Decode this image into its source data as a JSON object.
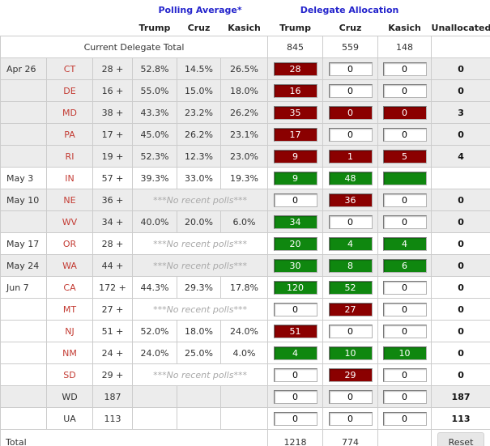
{
  "title_groups": {
    "polling": "Polling Average*",
    "allocation": "Delegate Allocation"
  },
  "columns": {
    "trump": "Trump",
    "cruz": "Cruz",
    "kasich": "Kasich",
    "unallocated": "Unallocated"
  },
  "current_total_row": {
    "label": "Current Delegate Total",
    "trump": "845",
    "cruz": "559",
    "kasich": "148",
    "unallocated": ""
  },
  "no_polls_text": "***No recent polls***",
  "rows": [
    {
      "date": "Apr 26",
      "state": "CT",
      "state_style": "red",
      "delegates": "28 +",
      "polls": [
        "52.8%",
        "14.5%",
        "26.5%"
      ],
      "alloc": [
        {
          "v": "28",
          "s": "red"
        },
        {
          "v": "0",
          "s": "white"
        },
        {
          "v": "0",
          "s": "white"
        }
      ],
      "unallocated": "0",
      "shaded": true
    },
    {
      "date": "",
      "state": "DE",
      "state_style": "red",
      "delegates": "16 +",
      "polls": [
        "55.0%",
        "15.0%",
        "18.0%"
      ],
      "alloc": [
        {
          "v": "16",
          "s": "red"
        },
        {
          "v": "0",
          "s": "white"
        },
        {
          "v": "0",
          "s": "white"
        }
      ],
      "unallocated": "0",
      "shaded": true
    },
    {
      "date": "",
      "state": "MD",
      "state_style": "red",
      "delegates": "38 +",
      "polls": [
        "43.3%",
        "23.2%",
        "26.2%"
      ],
      "alloc": [
        {
          "v": "35",
          "s": "red"
        },
        {
          "v": "0",
          "s": "red"
        },
        {
          "v": "0",
          "s": "red"
        }
      ],
      "unallocated": "3",
      "shaded": true
    },
    {
      "date": "",
      "state": "PA",
      "state_style": "red",
      "delegates": "17 +",
      "polls": [
        "45.0%",
        "26.2%",
        "23.1%"
      ],
      "alloc": [
        {
          "v": "17",
          "s": "red"
        },
        {
          "v": "0",
          "s": "white"
        },
        {
          "v": "0",
          "s": "white"
        }
      ],
      "unallocated": "0",
      "shaded": true
    },
    {
      "date": "",
      "state": "RI",
      "state_style": "red",
      "delegates": "19 +",
      "polls": [
        "52.3%",
        "12.3%",
        "23.0%"
      ],
      "alloc": [
        {
          "v": "9",
          "s": "red"
        },
        {
          "v": "1",
          "s": "red"
        },
        {
          "v": "5",
          "s": "red"
        }
      ],
      "unallocated": "4",
      "shaded": true
    },
    {
      "date": "May 3",
      "state": "IN",
      "state_style": "red",
      "delegates": "57 +",
      "polls": [
        "39.3%",
        "33.0%",
        "19.3%"
      ],
      "alloc": [
        {
          "v": "9",
          "s": "green"
        },
        {
          "v": "48",
          "s": "green"
        },
        {
          "v": "",
          "s": "green"
        }
      ],
      "unallocated": "",
      "shaded": false
    },
    {
      "date": "May 10",
      "state": "NE",
      "state_style": "red",
      "delegates": "36 +",
      "polls": "none",
      "alloc": [
        {
          "v": "0",
          "s": "white"
        },
        {
          "v": "36",
          "s": "red"
        },
        {
          "v": "0",
          "s": "white"
        }
      ],
      "unallocated": "0",
      "shaded": true
    },
    {
      "date": "",
      "state": "WV",
      "state_style": "red",
      "delegates": "34 +",
      "polls": [
        "40.0%",
        "20.0%",
        "6.0%"
      ],
      "alloc": [
        {
          "v": "34",
          "s": "green"
        },
        {
          "v": "0",
          "s": "white"
        },
        {
          "v": "0",
          "s": "white"
        }
      ],
      "unallocated": "0",
      "shaded": true
    },
    {
      "date": "May 17",
      "state": "OR",
      "state_style": "red",
      "delegates": "28 +",
      "polls": "none",
      "alloc": [
        {
          "v": "20",
          "s": "green"
        },
        {
          "v": "4",
          "s": "green"
        },
        {
          "v": "4",
          "s": "green"
        }
      ],
      "unallocated": "0",
      "shaded": false
    },
    {
      "date": "May 24",
      "state": "WA",
      "state_style": "red",
      "delegates": "44 +",
      "polls": "none",
      "alloc": [
        {
          "v": "30",
          "s": "green"
        },
        {
          "v": "8",
          "s": "green"
        },
        {
          "v": "6",
          "s": "green"
        }
      ],
      "unallocated": "0",
      "shaded": true
    },
    {
      "date": "Jun 7",
      "state": "CA",
      "state_style": "red",
      "delegates": "172 +",
      "polls": [
        "44.3%",
        "29.3%",
        "17.8%"
      ],
      "alloc": [
        {
          "v": "120",
          "s": "green"
        },
        {
          "v": "52",
          "s": "green"
        },
        {
          "v": "0",
          "s": "white"
        }
      ],
      "unallocated": "0",
      "shaded": false
    },
    {
      "date": "",
      "state": "MT",
      "state_style": "red",
      "delegates": "27 +",
      "polls": "none",
      "alloc": [
        {
          "v": "0",
          "s": "white"
        },
        {
          "v": "27",
          "s": "red"
        },
        {
          "v": "0",
          "s": "white"
        }
      ],
      "unallocated": "0",
      "shaded": false
    },
    {
      "date": "",
      "state": "NJ",
      "state_style": "red",
      "delegates": "51 +",
      "polls": [
        "52.0%",
        "18.0%",
        "24.0%"
      ],
      "alloc": [
        {
          "v": "51",
          "s": "red"
        },
        {
          "v": "0",
          "s": "white"
        },
        {
          "v": "0",
          "s": "white"
        }
      ],
      "unallocated": "0",
      "shaded": false
    },
    {
      "date": "",
      "state": "NM",
      "state_style": "red",
      "delegates": "24 +",
      "polls": [
        "24.0%",
        "25.0%",
        "4.0%"
      ],
      "alloc": [
        {
          "v": "4",
          "s": "green"
        },
        {
          "v": "10",
          "s": "green"
        },
        {
          "v": "10",
          "s": "green"
        }
      ],
      "unallocated": "0",
      "shaded": false
    },
    {
      "date": "",
      "state": "SD",
      "state_style": "red",
      "delegates": "29 +",
      "polls": "none",
      "alloc": [
        {
          "v": "0",
          "s": "white"
        },
        {
          "v": "29",
          "s": "red"
        },
        {
          "v": "0",
          "s": "white"
        }
      ],
      "unallocated": "0",
      "shaded": false
    },
    {
      "date": "",
      "state": "WD",
      "state_style": "dark",
      "delegates": "187",
      "polls": "blank",
      "alloc": [
        {
          "v": "0",
          "s": "white"
        },
        {
          "v": "0",
          "s": "white"
        },
        {
          "v": "0",
          "s": "white"
        }
      ],
      "unallocated": "187",
      "shaded": true
    },
    {
      "date": "",
      "state": "UA",
      "state_style": "dark",
      "delegates": "113",
      "polls": "blank",
      "alloc": [
        {
          "v": "0",
          "s": "white"
        },
        {
          "v": "0",
          "s": "white"
        },
        {
          "v": "0",
          "s": "white"
        }
      ],
      "unallocated": "113",
      "shaded": false
    }
  ],
  "total_row": {
    "label": "Total",
    "trump": "1218",
    "cruz": "774",
    "kasich": "",
    "reset_label": "Reset"
  },
  "colors": {
    "accent_blue": "#2424cc",
    "state_red": "#c33b33",
    "alloc_red": "#8b0000",
    "alloc_green": "#0f870f",
    "shaded_row": "#ececec"
  }
}
